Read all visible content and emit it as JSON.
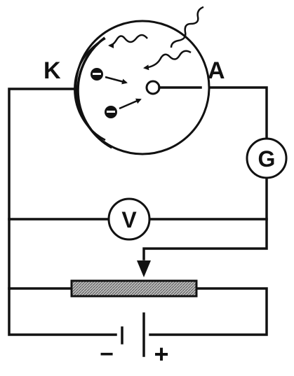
{
  "labels": {
    "cathode": "K",
    "anode": "A",
    "galvanometer": "G",
    "voltmeter": "V",
    "battery_negative": "−",
    "battery_positive": "+"
  },
  "icons": {
    "electron": "electron-icon",
    "light_wave": "light-wave-icon"
  },
  "colors": {
    "ink": "#111111",
    "background": "#ffffff",
    "rheostat_fill": "#bdbdbd"
  }
}
